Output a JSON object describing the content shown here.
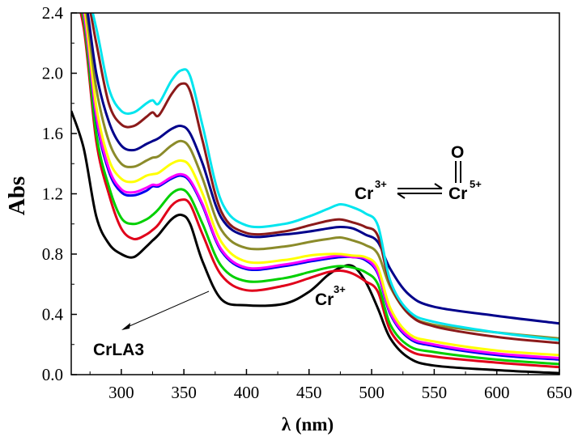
{
  "chart_data": {
    "type": "line",
    "xlabel": "λ (nm)",
    "ylabel": "Abs",
    "xlim": [
      260,
      650
    ],
    "ylim": [
      0.0,
      2.4
    ],
    "xticks": [
      300,
      350,
      400,
      450,
      500,
      550,
      600,
      650
    ],
    "yticks": [
      0.0,
      0.4,
      0.8,
      1.2,
      1.6,
      2.0,
      2.4
    ],
    "xtick_labels": [
      "300",
      "350",
      "400",
      "450",
      "500",
      "550",
      "600",
      "650"
    ],
    "ytick_labels": [
      "0.0",
      "0.4",
      "0.8",
      "1.2",
      "1.6",
      "2.0",
      "2.4"
    ],
    "grid": false,
    "annotations": {
      "crla3": "CrLA3",
      "cr3_label": "Cr",
      "cr3_sup": "3+",
      "eq_left": "Cr",
      "eq_left_sup": "3+",
      "eq_right": "Cr",
      "eq_right_sup": "5+",
      "eq_oxygen": "O"
    },
    "x": [
      260,
      270,
      280,
      290,
      300,
      310,
      320,
      325,
      330,
      340,
      348,
      355,
      365,
      380,
      400,
      430,
      450,
      465,
      475,
      485,
      495,
      505,
      515,
      530,
      550,
      600,
      650
    ],
    "series": [
      {
        "color": "#000000",
        "values": [
          1.75,
          1.5,
          1.05,
          0.87,
          0.8,
          0.78,
          0.85,
          0.89,
          0.93,
          1.03,
          1.06,
          1.0,
          0.75,
          0.5,
          0.46,
          0.47,
          0.55,
          0.66,
          0.71,
          0.72,
          0.62,
          0.44,
          0.24,
          0.11,
          0.06,
          0.03,
          0.01
        ]
      },
      {
        "color": "#e0001a",
        "values": [
          2.6,
          2.3,
          1.55,
          1.2,
          0.97,
          0.9,
          0.93,
          0.96,
          1.0,
          1.12,
          1.16,
          1.13,
          0.93,
          0.66,
          0.56,
          0.59,
          0.64,
          0.68,
          0.69,
          0.67,
          0.62,
          0.55,
          0.29,
          0.16,
          0.12,
          0.08,
          0.05
        ]
      },
      {
        "color": "#00d000",
        "values": [
          2.6,
          2.35,
          1.6,
          1.25,
          1.04,
          1.0,
          1.03,
          1.06,
          1.1,
          1.2,
          1.23,
          1.18,
          1.0,
          0.72,
          0.62,
          0.64,
          0.68,
          0.71,
          0.72,
          0.71,
          0.68,
          0.6,
          0.33,
          0.19,
          0.15,
          0.1,
          0.07
        ]
      },
      {
        "color": "#0000ee",
        "values": [
          2.6,
          2.4,
          1.7,
          1.35,
          1.21,
          1.19,
          1.22,
          1.25,
          1.25,
          1.3,
          1.32,
          1.28,
          1.12,
          0.82,
          0.7,
          0.72,
          0.75,
          0.77,
          0.78,
          0.78,
          0.76,
          0.67,
          0.4,
          0.24,
          0.19,
          0.13,
          0.1
        ]
      },
      {
        "color": "#ff00ff",
        "values": [
          2.6,
          2.4,
          1.72,
          1.37,
          1.23,
          1.21,
          1.24,
          1.26,
          1.26,
          1.31,
          1.33,
          1.29,
          1.13,
          0.83,
          0.71,
          0.73,
          0.76,
          0.78,
          0.79,
          0.78,
          0.77,
          0.68,
          0.41,
          0.25,
          0.2,
          0.14,
          0.11
        ]
      },
      {
        "color": "#ffff00",
        "values": [
          2.6,
          2.45,
          1.78,
          1.43,
          1.3,
          1.28,
          1.32,
          1.33,
          1.34,
          1.4,
          1.42,
          1.38,
          1.2,
          0.88,
          0.75,
          0.76,
          0.79,
          0.8,
          0.8,
          0.79,
          0.78,
          0.71,
          0.44,
          0.27,
          0.22,
          0.16,
          0.13
        ]
      },
      {
        "color": "#8b8b2a",
        "values": [
          2.6,
          2.5,
          1.9,
          1.55,
          1.4,
          1.38,
          1.42,
          1.44,
          1.45,
          1.52,
          1.55,
          1.5,
          1.3,
          0.96,
          0.84,
          0.85,
          0.88,
          0.9,
          0.91,
          0.89,
          0.86,
          0.8,
          0.58,
          0.4,
          0.33,
          0.28,
          0.24
        ]
      },
      {
        "color": "#00008b",
        "values": [
          2.6,
          2.55,
          2.0,
          1.68,
          1.52,
          1.49,
          1.53,
          1.55,
          1.57,
          1.63,
          1.65,
          1.6,
          1.4,
          1.04,
          0.92,
          0.93,
          0.95,
          0.97,
          0.98,
          0.97,
          0.93,
          0.88,
          0.7,
          0.53,
          0.45,
          0.39,
          0.34
        ]
      },
      {
        "color": "#8b1a1a",
        "values": [
          2.6,
          2.6,
          2.2,
          1.8,
          1.66,
          1.65,
          1.71,
          1.74,
          1.72,
          1.86,
          1.93,
          1.88,
          1.55,
          1.08,
          0.94,
          0.95,
          0.99,
          1.02,
          1.03,
          1.01,
          0.98,
          0.92,
          0.6,
          0.4,
          0.32,
          0.25,
          0.21
        ]
      },
      {
        "color": "#00e5ee",
        "values": [
          2.6,
          2.6,
          2.3,
          1.9,
          1.75,
          1.74,
          1.8,
          1.82,
          1.8,
          1.95,
          2.02,
          1.98,
          1.65,
          1.15,
          0.99,
          1.0,
          1.05,
          1.1,
          1.13,
          1.11,
          1.07,
          0.99,
          0.62,
          0.42,
          0.35,
          0.28,
          0.23
        ]
      }
    ]
  }
}
